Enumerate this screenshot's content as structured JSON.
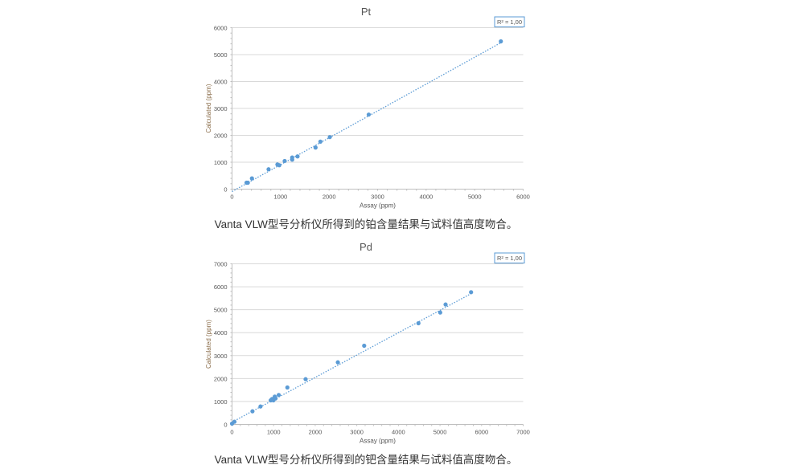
{
  "chart_data": [
    {
      "type": "scatter",
      "title": "Pt",
      "xlabel": "Assay (ppm)",
      "ylabel": "Calculated (ppm)",
      "xlim": [
        0,
        6000
      ],
      "ylim": [
        0,
        6000
      ],
      "xticks": [
        "0",
        "1000",
        "2000",
        "3000",
        "4000",
        "5000",
        "6000"
      ],
      "yticks": [
        "0",
        "1000",
        "2000",
        "3000",
        "4000",
        "5000",
        "6000"
      ],
      "grid": "horizontal",
      "annotation": "R² = 1,00",
      "trendline": {
        "style": "dotted linear",
        "from": [
          0,
          -90
        ],
        "to": [
          5540,
          5442
        ]
      },
      "color": "#5b9bd5",
      "points": [
        [
          299,
          239
        ],
        [
          326,
          239
        ],
        [
          410,
          399
        ],
        [
          753,
          738
        ],
        [
          935,
          917
        ],
        [
          974,
          887
        ],
        [
          1085,
          1047
        ],
        [
          1240,
          1176
        ],
        [
          1240,
          1096
        ],
        [
          1350,
          1216
        ],
        [
          1721,
          1545
        ],
        [
          1821,
          1764
        ],
        [
          2015,
          1934
        ],
        [
          2817,
          2771
        ],
        [
          5540,
          5492
        ]
      ],
      "caption": "Vanta VLW型号分析仪所得到的铂含量结果与试料值高度吻合。"
    },
    {
      "type": "scatter",
      "title": "Pd",
      "xlabel": "Assay (ppm)",
      "ylabel": "Calculated (ppm)",
      "xlim": [
        0,
        7000
      ],
      "ylim": [
        0,
        7000
      ],
      "xticks": [
        "0",
        "1000",
        "2000",
        "3000",
        "4000",
        "5000",
        "6000",
        "7000"
      ],
      "yticks": [
        "0",
        "1000",
        "2000",
        "3000",
        "4000",
        "5000",
        "6000",
        "7000"
      ],
      "grid": "horizontal",
      "annotation": "R² = 1,00",
      "trendline": {
        "style": "dotted linear",
        "from": [
          0,
          100
        ],
        "to": [
          5747,
          5700
        ]
      },
      "color": "#5b9bd5",
      "points": [
        [
          0,
          35
        ],
        [
          58,
          117
        ],
        [
          491,
          572
        ],
        [
          684,
          782
        ],
        [
          930,
          1050
        ],
        [
          962,
          1108
        ],
        [
          994,
          1050
        ],
        [
          1027,
          1213
        ],
        [
          1046,
          1132
        ],
        [
          1123,
          1283
        ],
        [
          1330,
          1610
        ],
        [
          1769,
          1972
        ],
        [
          2544,
          2707
        ],
        [
          3177,
          3430
        ],
        [
          4482,
          4410
        ],
        [
          5005,
          4877
        ],
        [
          5134,
          5227
        ],
        [
          5747,
          5763
        ]
      ],
      "caption": "Vanta VLW型号分析仪所得到的钯含量结果与试料值高度吻合。"
    }
  ]
}
